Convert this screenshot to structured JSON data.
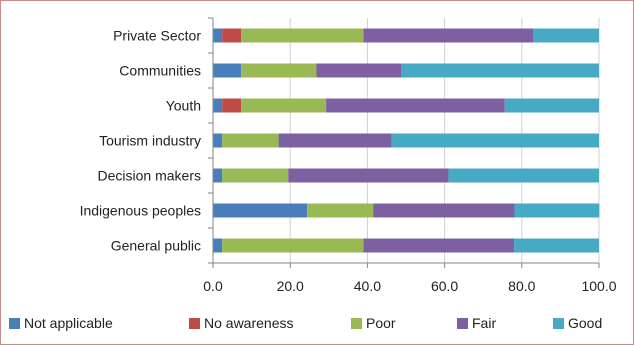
{
  "chart_data": {
    "type": "bar",
    "orientation": "horizontal",
    "stacked": true,
    "categories": [
      "Private Sector",
      "Communities",
      "Youth",
      "Tourism industry",
      "Decision makers",
      "Indigenous peoples",
      "General public"
    ],
    "series": [
      {
        "name": "Not applicable",
        "color": "#4a7ebb",
        "values": [
          2.4,
          7.3,
          2.4,
          2.4,
          2.4,
          24.4,
          2.4
        ]
      },
      {
        "name": "No awareness",
        "color": "#be4b48",
        "values": [
          4.9,
          0,
          4.9,
          0,
          0,
          0,
          0
        ]
      },
      {
        "name": "Poor",
        "color": "#98b954",
        "values": [
          31.7,
          19.5,
          22.0,
          14.6,
          17.1,
          17.1,
          36.6
        ]
      },
      {
        "name": "Fair",
        "color": "#7d60a0",
        "values": [
          43.9,
          22.0,
          46.3,
          29.3,
          41.5,
          36.6,
          39.0
        ]
      },
      {
        "name": "Good",
        "color": "#46aac5",
        "values": [
          17.1,
          51.2,
          24.4,
          53.7,
          39.0,
          22.0,
          22.0
        ]
      }
    ],
    "xlim": [
      0,
      100
    ],
    "xticks": [
      "0.0",
      "20.0",
      "40.0",
      "60.0",
      "80.0",
      "100.0"
    ],
    "grid": "vertical",
    "legend_position": "bottom"
  }
}
